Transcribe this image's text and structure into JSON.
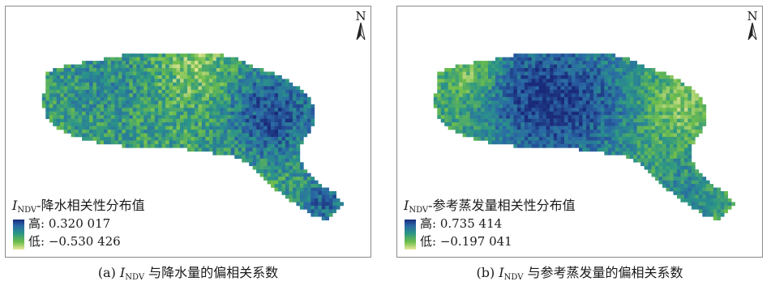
{
  "panels": [
    {
      "id": "a",
      "north_label": "N",
      "legend": {
        "var_letter": "I",
        "var_sub": "NDV",
        "title_rest": "-降水相关性分布值",
        "high_text": "高: 0.320 017",
        "low_text": "低: −0.530 426",
        "high_value": 0.320017,
        "low_value": -0.530426,
        "ramp_colors": [
          "#1a2a7a",
          "#2a67a6",
          "#2a9488",
          "#6ebd4b",
          "#e9e79a"
        ]
      },
      "caption": {
        "prefix": "(a) ",
        "var_letter": "I",
        "var_sub": "NDV",
        "rest": " 与降水量的偏相关系数"
      }
    },
    {
      "id": "b",
      "north_label": "N",
      "legend": {
        "var_letter": "I",
        "var_sub": "NDV",
        "title_rest": "-参考蒸发量相关性分布值",
        "high_text": "高: 0.735 414",
        "low_text": "低: −0.197 041",
        "high_value": 0.735414,
        "low_value": -0.197041,
        "ramp_colors": [
          "#1a2a7a",
          "#2a67a6",
          "#2a9488",
          "#6ebd4b",
          "#e9e79a"
        ]
      },
      "caption": {
        "prefix": "(b) ",
        "var_letter": "I",
        "var_sub": "NDV",
        "rest": " 与参考蒸发量的偏相关系数"
      }
    }
  ]
}
